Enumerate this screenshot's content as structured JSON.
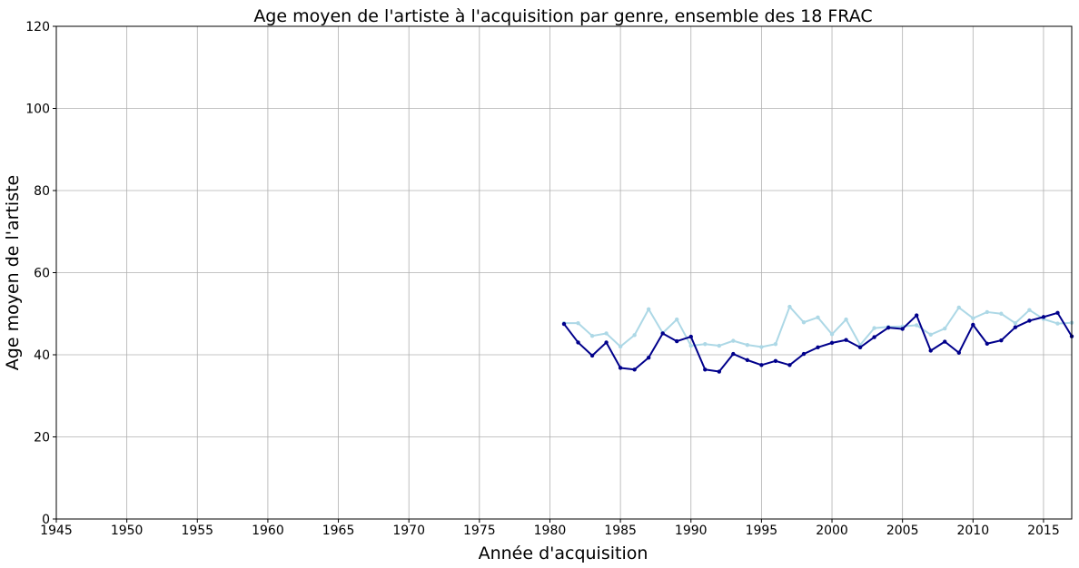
{
  "chart_data": {
    "type": "line",
    "title": "Age moyen de l'artiste à l'acquisition par genre, ensemble des 18 FRAC",
    "xlabel": "Année d'acquisition",
    "ylabel": "Age moyen de l'artiste",
    "xlim": [
      1945,
      2017
    ],
    "ylim": [
      0,
      120
    ],
    "xticks": [
      1945,
      1950,
      1955,
      1960,
      1965,
      1970,
      1975,
      1980,
      1985,
      1990,
      1995,
      2000,
      2005,
      2010,
      2015
    ],
    "yticks": [
      0,
      20,
      40,
      60,
      80,
      100,
      120
    ],
    "grid": true,
    "x": [
      1981,
      1982,
      1983,
      1984,
      1985,
      1986,
      1987,
      1988,
      1989,
      1990,
      1991,
      1992,
      1993,
      1994,
      1995,
      1996,
      1997,
      1998,
      1999,
      2000,
      2001,
      2002,
      2003,
      2004,
      2005,
      2006,
      2007,
      2008,
      2009,
      2010,
      2011,
      2012,
      2013,
      2014,
      2015,
      2016,
      2017
    ],
    "series": [
      {
        "color": "#00008b",
        "values": [
          47.5,
          43.0,
          39.8,
          43.0,
          36.8,
          36.4,
          39.3,
          45.2,
          43.3,
          44.4,
          36.4,
          35.9,
          40.2,
          38.7,
          37.5,
          38.5,
          37.5,
          40.2,
          41.8,
          42.9,
          43.6,
          41.8,
          44.3,
          46.6,
          46.3,
          49.6,
          41.0,
          43.2,
          40.5,
          47.3,
          42.7,
          43.5,
          46.7,
          48.3,
          49.2,
          50.2,
          44.5
        ]
      },
      {
        "color": "#add8e6",
        "values": [
          47.7,
          47.7,
          44.6,
          45.2,
          42.0,
          44.8,
          51.1,
          45.3,
          48.6,
          42.2,
          42.6,
          42.2,
          43.4,
          42.4,
          41.9,
          42.6,
          51.7,
          47.9,
          49.1,
          45.0,
          48.6,
          42.4,
          46.5,
          46.8,
          46.9,
          47.2,
          44.9,
          46.4,
          51.5,
          48.9,
          50.4,
          50.0,
          47.7,
          50.9,
          48.7,
          47.6,
          47.8
        ]
      }
    ]
  }
}
